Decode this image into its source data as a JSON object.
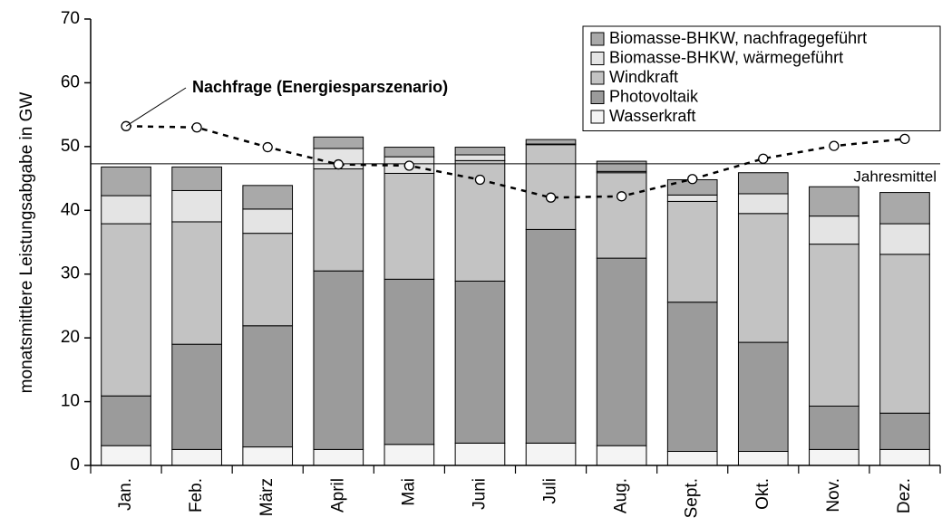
{
  "chart_data": {
    "type": "bar",
    "stacked": true,
    "y_label": "monatsmittlere Leistungsabgabe in GW",
    "categories": [
      "Jan.",
      "Feb.",
      "März",
      "April",
      "Mai",
      "Juni",
      "Juli",
      "Aug.",
      "Sept.",
      "Okt.",
      "Nov.",
      "Dez."
    ],
    "series": [
      {
        "name": "Wasserkraft",
        "color": "#f4f4f4",
        "values": [
          3.1,
          2.5,
          2.9,
          2.5,
          3.3,
          3.5,
          3.5,
          3.1,
          2.2,
          2.2,
          2.5,
          2.5
        ]
      },
      {
        "name": "Photovoltaik",
        "color": "#9b9b9b",
        "values": [
          7.8,
          16.5,
          19.0,
          28.0,
          25.9,
          25.4,
          33.5,
          29.4,
          23.4,
          17.1,
          6.8,
          5.7
        ]
      },
      {
        "name": "Windkraft",
        "color": "#c3c3c3",
        "values": [
          27.0,
          19.2,
          14.5,
          16.0,
          16.6,
          18.9,
          13.3,
          13.4,
          15.8,
          20.2,
          25.4,
          24.9
        ]
      },
      {
        "name": "Biomasse-BHKW, wärmegeführt",
        "color": "#e4e4e4",
        "values": [
          4.4,
          4.9,
          3.8,
          3.2,
          2.6,
          0.9,
          0.1,
          0.2,
          1.0,
          3.1,
          4.4,
          4.8
        ]
      },
      {
        "name": "Biomasse-BHKW, nachfragegeführt",
        "color": "#a9a9a9",
        "values": [
          4.5,
          3.7,
          3.7,
          1.8,
          1.5,
          1.2,
          0.7,
          1.6,
          2.4,
          3.3,
          4.6,
          4.9
        ]
      }
    ],
    "line": {
      "name": "Nachfrage (Energiesparszenario)",
      "color": "#000000",
      "values": [
        53.2,
        53.0,
        49.9,
        47.2,
        47.0,
        44.8,
        42.0,
        42.2,
        44.9,
        48.1,
        50.1,
        51.2
      ]
    },
    "reference_line": {
      "label": "Jahresmittel",
      "value": 47.3
    },
    "ylim": [
      0,
      70
    ],
    "yticks": [
      0,
      10,
      20,
      30,
      40,
      50,
      60,
      70
    ],
    "legend": "upper right"
  }
}
